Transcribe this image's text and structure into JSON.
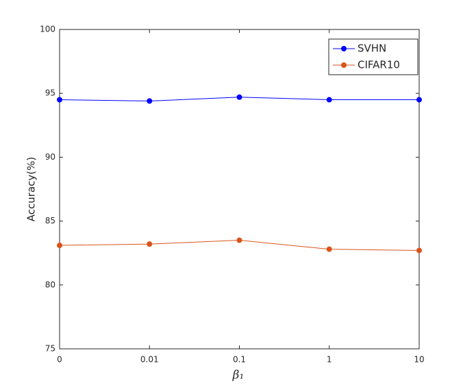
{
  "chart_data": {
    "type": "line",
    "x_label": "β₁",
    "y_label": "Accuracy(%)",
    "categories": [
      "0",
      "0.01",
      "0.1",
      "1",
      "10"
    ],
    "series": [
      {
        "name": "SVHN",
        "color": "#0000ff",
        "values": [
          94.5,
          94.4,
          94.7,
          94.5,
          94.5
        ]
      },
      {
        "name": "CIFAR10",
        "color": "#d95319",
        "values": [
          83.1,
          83.2,
          83.5,
          82.8,
          82.7
        ]
      }
    ],
    "ylim": [
      75,
      100
    ],
    "yticks": [
      75,
      80,
      85,
      90,
      95,
      100
    ],
    "legend": "upper-right",
    "grid": false
  }
}
